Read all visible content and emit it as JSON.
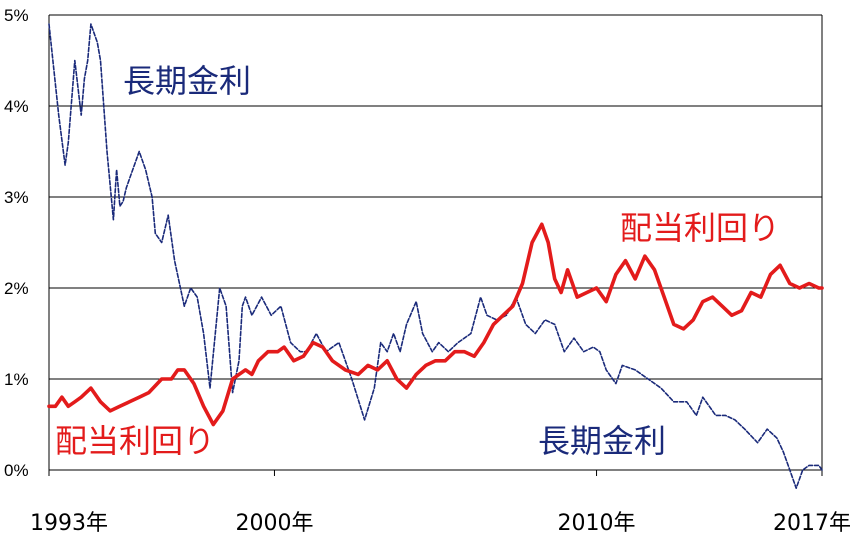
{
  "chart_data": {
    "type": "line",
    "title": "",
    "xlabel": "",
    "ylabel": "",
    "ylim": [
      0,
      5
    ],
    "xlim": [
      1993.0,
      2017.0
    ],
    "y_ticks": [
      "0%",
      "1%",
      "2%",
      "3%",
      "4%",
      "5%"
    ],
    "x_ticks": [
      {
        "label": "1993年",
        "value": 1993.0
      },
      {
        "label": "2000年",
        "value": 2000.0
      },
      {
        "label": "2010年",
        "value": 2010.0
      },
      {
        "label": "2017年",
        "value": 2017.0
      }
    ],
    "grid": true,
    "colors": {
      "long_rate": "#1a2a7a",
      "dividend": "#e31b1b"
    },
    "annotations": [
      {
        "text": "長期金利",
        "series": "long_rate"
      },
      {
        "text": "配当利回り",
        "series": "dividend"
      },
      {
        "text": "配当利回り",
        "series": "dividend"
      },
      {
        "text": "長期金利",
        "series": "long_rate"
      }
    ],
    "series": [
      {
        "key": "long_rate",
        "style": "dashed",
        "x": [
          1993.0,
          1993.3,
          1993.5,
          1993.6,
          1993.8,
          1994.0,
          1994.1,
          1994.2,
          1994.3,
          1994.5,
          1994.6,
          1994.8,
          1995.0,
          1995.1,
          1995.2,
          1995.3,
          1995.4,
          1995.5,
          1995.8,
          1996.0,
          1996.2,
          1996.3,
          1996.5,
          1996.7,
          1996.9,
          1997.2,
          1997.4,
          1997.6,
          1997.8,
          1998.0,
          1998.3,
          1998.5,
          1998.7,
          1998.9,
          1999.0,
          1999.1,
          1999.3,
          1999.6,
          1999.9,
          2000.2,
          2000.5,
          2000.8,
          2001.0,
          2001.3,
          2001.6,
          2002.0,
          2002.4,
          2002.8,
          2003.1,
          2003.3,
          2003.5,
          2003.7,
          2003.9,
          2004.1,
          2004.4,
          2004.6,
          2004.9,
          2005.1,
          2005.4,
          2005.7,
          2006.1,
          2006.4,
          2006.6,
          2006.9,
          2007.2,
          2007.5,
          2007.8,
          2008.1,
          2008.4,
          2008.7,
          2009.0,
          2009.3,
          2009.6,
          2009.9,
          2010.1,
          2010.3,
          2010.6,
          2010.8,
          2011.2,
          2011.6,
          2012.0,
          2012.4,
          2012.8,
          2013.1,
          2013.3,
          2013.5,
          2013.7,
          2014.0,
          2014.3,
          2014.6,
          2015.0,
          2015.3,
          2015.6,
          2015.8,
          2016.0,
          2016.2,
          2016.4,
          2016.6,
          2016.9,
          2017.0
        ],
        "y": [
          4.9,
          3.9,
          3.35,
          3.6,
          4.5,
          3.9,
          4.3,
          4.5,
          4.9,
          4.7,
          4.5,
          3.5,
          2.75,
          3.3,
          2.9,
          2.95,
          3.1,
          3.2,
          3.5,
          3.3,
          3.0,
          2.6,
          2.5,
          2.8,
          2.3,
          1.8,
          2.0,
          1.9,
          1.5,
          0.9,
          2.0,
          1.8,
          0.85,
          1.2,
          1.8,
          1.9,
          1.7,
          1.9,
          1.7,
          1.8,
          1.4,
          1.3,
          1.3,
          1.5,
          1.3,
          1.4,
          1.0,
          0.55,
          0.9,
          1.4,
          1.3,
          1.5,
          1.3,
          1.6,
          1.85,
          1.5,
          1.3,
          1.4,
          1.3,
          1.4,
          1.5,
          1.9,
          1.7,
          1.65,
          1.7,
          1.9,
          1.6,
          1.5,
          1.65,
          1.6,
          1.3,
          1.45,
          1.3,
          1.35,
          1.3,
          1.1,
          0.95,
          1.15,
          1.1,
          1.0,
          0.9,
          0.75,
          0.75,
          0.6,
          0.8,
          0.7,
          0.6,
          0.6,
          0.55,
          0.45,
          0.3,
          0.45,
          0.35,
          0.2,
          0.0,
          -0.2,
          0.0,
          0.05,
          0.05,
          0.0
        ]
      },
      {
        "key": "dividend",
        "style": "solid",
        "x": [
          1993.0,
          1993.2,
          1993.4,
          1993.6,
          1993.8,
          1994.0,
          1994.3,
          1994.6,
          1994.9,
          1995.2,
          1995.5,
          1995.8,
          1996.1,
          1996.5,
          1996.8,
          1997.0,
          1997.2,
          1997.5,
          1997.8,
          1998.1,
          1998.4,
          1998.7,
          1998.9,
          1999.1,
          1999.3,
          1999.5,
          1999.8,
          2000.1,
          2000.3,
          2000.6,
          2000.9,
          2001.2,
          2001.5,
          2001.8,
          2002.2,
          2002.6,
          2002.9,
          2003.2,
          2003.5,
          2003.8,
          2004.1,
          2004.4,
          2004.7,
          2005.0,
          2005.3,
          2005.6,
          2005.9,
          2006.2,
          2006.5,
          2006.8,
          2007.1,
          2007.4,
          2007.7,
          2008.0,
          2008.3,
          2008.5,
          2008.7,
          2008.9,
          2009.1,
          2009.4,
          2009.7,
          2010.0,
          2010.3,
          2010.6,
          2010.9,
          2011.2,
          2011.5,
          2011.8,
          2012.1,
          2012.4,
          2012.7,
          2013.0,
          2013.3,
          2013.6,
          2013.9,
          2014.2,
          2014.5,
          2014.8,
          2015.1,
          2015.4,
          2015.7,
          2016.0,
          2016.3,
          2016.6,
          2016.9,
          2017.0
        ],
        "y": [
          0.7,
          0.7,
          0.8,
          0.7,
          0.75,
          0.8,
          0.9,
          0.75,
          0.65,
          0.7,
          0.75,
          0.8,
          0.85,
          1.0,
          1.0,
          1.1,
          1.1,
          0.95,
          0.7,
          0.5,
          0.65,
          1.0,
          1.05,
          1.1,
          1.05,
          1.2,
          1.3,
          1.3,
          1.35,
          1.2,
          1.25,
          1.4,
          1.35,
          1.2,
          1.1,
          1.05,
          1.15,
          1.1,
          1.2,
          1.0,
          0.9,
          1.05,
          1.15,
          1.2,
          1.2,
          1.3,
          1.3,
          1.25,
          1.4,
          1.6,
          1.7,
          1.8,
          2.05,
          2.5,
          2.7,
          2.5,
          2.1,
          1.95,
          2.2,
          1.9,
          1.95,
          2.0,
          1.85,
          2.15,
          2.3,
          2.1,
          2.35,
          2.2,
          1.9,
          1.6,
          1.55,
          1.65,
          1.85,
          1.9,
          1.8,
          1.7,
          1.75,
          1.95,
          1.9,
          2.15,
          2.25,
          2.05,
          2.0,
          2.05,
          2.0,
          2.0
        ]
      }
    ]
  }
}
